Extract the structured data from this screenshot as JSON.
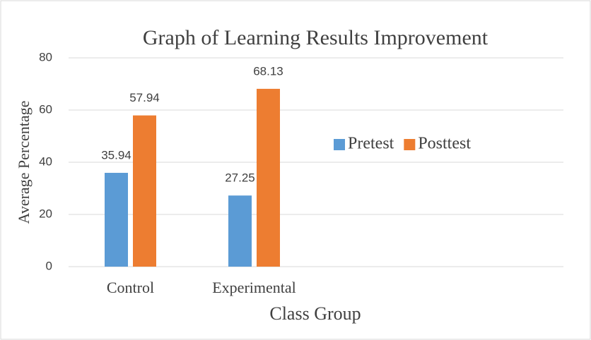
{
  "chart_data": {
    "type": "bar",
    "title": "Graph of Learning Results Improvement",
    "x_label": "Class Group",
    "y_label": "Average Percentage",
    "categories": [
      "Control",
      "Experimental",
      null,
      null
    ],
    "series": [
      {
        "name": "Pretest",
        "color": "#5b9bd5",
        "values": [
          35.94,
          27.25,
          null,
          null
        ]
      },
      {
        "name": "Posttest",
        "color": "#ed7d31",
        "values": [
          57.94,
          68.13,
          null,
          null
        ]
      }
    ],
    "ylim": [
      0,
      80
    ],
    "yticks": [
      0,
      20,
      40,
      60,
      80
    ],
    "grid": true,
    "legend": "center"
  }
}
